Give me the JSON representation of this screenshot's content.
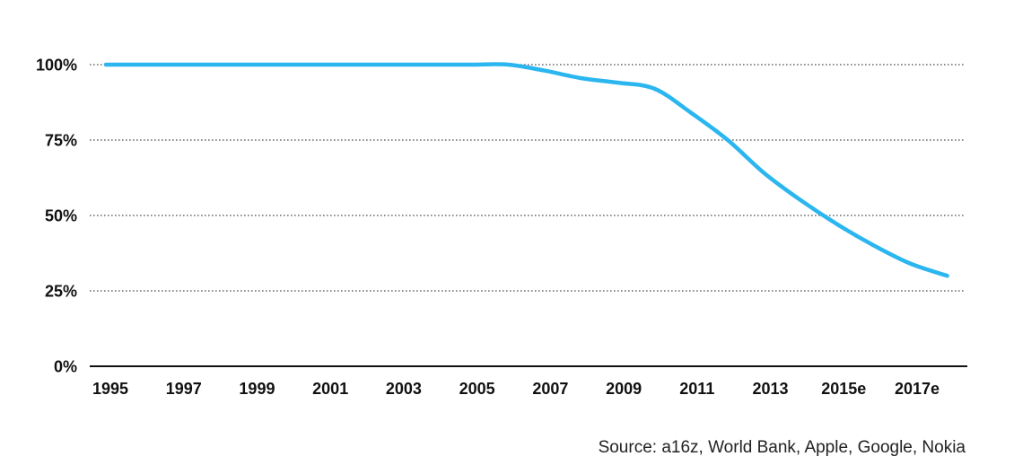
{
  "chart_data": {
    "type": "line",
    "title": "",
    "xlabel": "",
    "ylabel": "",
    "x_ticks": [
      "1995",
      "1997",
      "1999",
      "2001",
      "2003",
      "2005",
      "2007",
      "2009",
      "2011",
      "2013",
      "2015e",
      "2017e"
    ],
    "y_ticks": [
      {
        "value": 0,
        "label": "0%"
      },
      {
        "value": 25,
        "label": "25%"
      },
      {
        "value": 50,
        "label": "50%"
      },
      {
        "value": 75,
        "label": "75%"
      },
      {
        "value": 100,
        "label": "100%"
      }
    ],
    "ylim": [
      0,
      100
    ],
    "xlim": [
      1995,
      2018.5
    ],
    "grid": true,
    "series": [
      {
        "color": "#2bb6ef",
        "x": [
          1995,
          1996,
          1997,
          1998,
          1999,
          2000,
          2001,
          2002,
          2003,
          2004,
          2005,
          2006,
          2007,
          2008,
          2009,
          2010,
          2011,
          2012,
          2013,
          2014,
          2015,
          2016,
          2017,
          2018
        ],
        "y": [
          100,
          100,
          100,
          100,
          100,
          100,
          100,
          100,
          100,
          100,
          100,
          100,
          98,
          95.5,
          94,
          92,
          84,
          75,
          64,
          55,
          47,
          40,
          34,
          30
        ]
      }
    ]
  },
  "source": "Source: a16z, World Bank, Apple, Google, Nokia"
}
